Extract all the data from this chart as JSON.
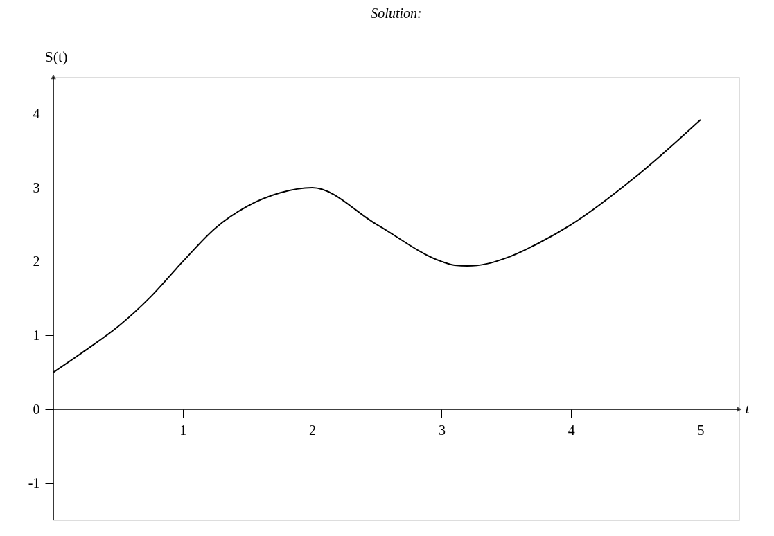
{
  "chart_data": {
    "type": "line",
    "title": "Solution:",
    "xlabel": "t",
    "ylabel": "S(t)",
    "x": [
      0,
      0.25,
      0.5,
      0.75,
      1,
      1.25,
      1.5,
      1.75,
      2,
      2.5,
      3,
      3.1,
      3.2,
      3.35,
      3.5,
      3.75,
      4,
      4.5,
      5
    ],
    "series": [
      {
        "color": "#000000",
        "values": [
          0.5,
          0.8,
          1.12,
          1.52,
          2,
          2.45,
          2.75,
          2.93,
          3,
          2.5,
          2,
          1.95,
          1.94,
          1.97,
          2.05,
          2.25,
          2.5,
          3.15,
          3.92
        ]
      }
    ],
    "xlim": [
      0,
      5.3
    ],
    "ylim": [
      -1.5,
      4.5
    ],
    "xticks": [
      1,
      2,
      3,
      4,
      5
    ],
    "yticks": [
      -1,
      0,
      1,
      2,
      3,
      4
    ],
    "grid": false,
    "marker": "none",
    "line_style": "solid"
  }
}
